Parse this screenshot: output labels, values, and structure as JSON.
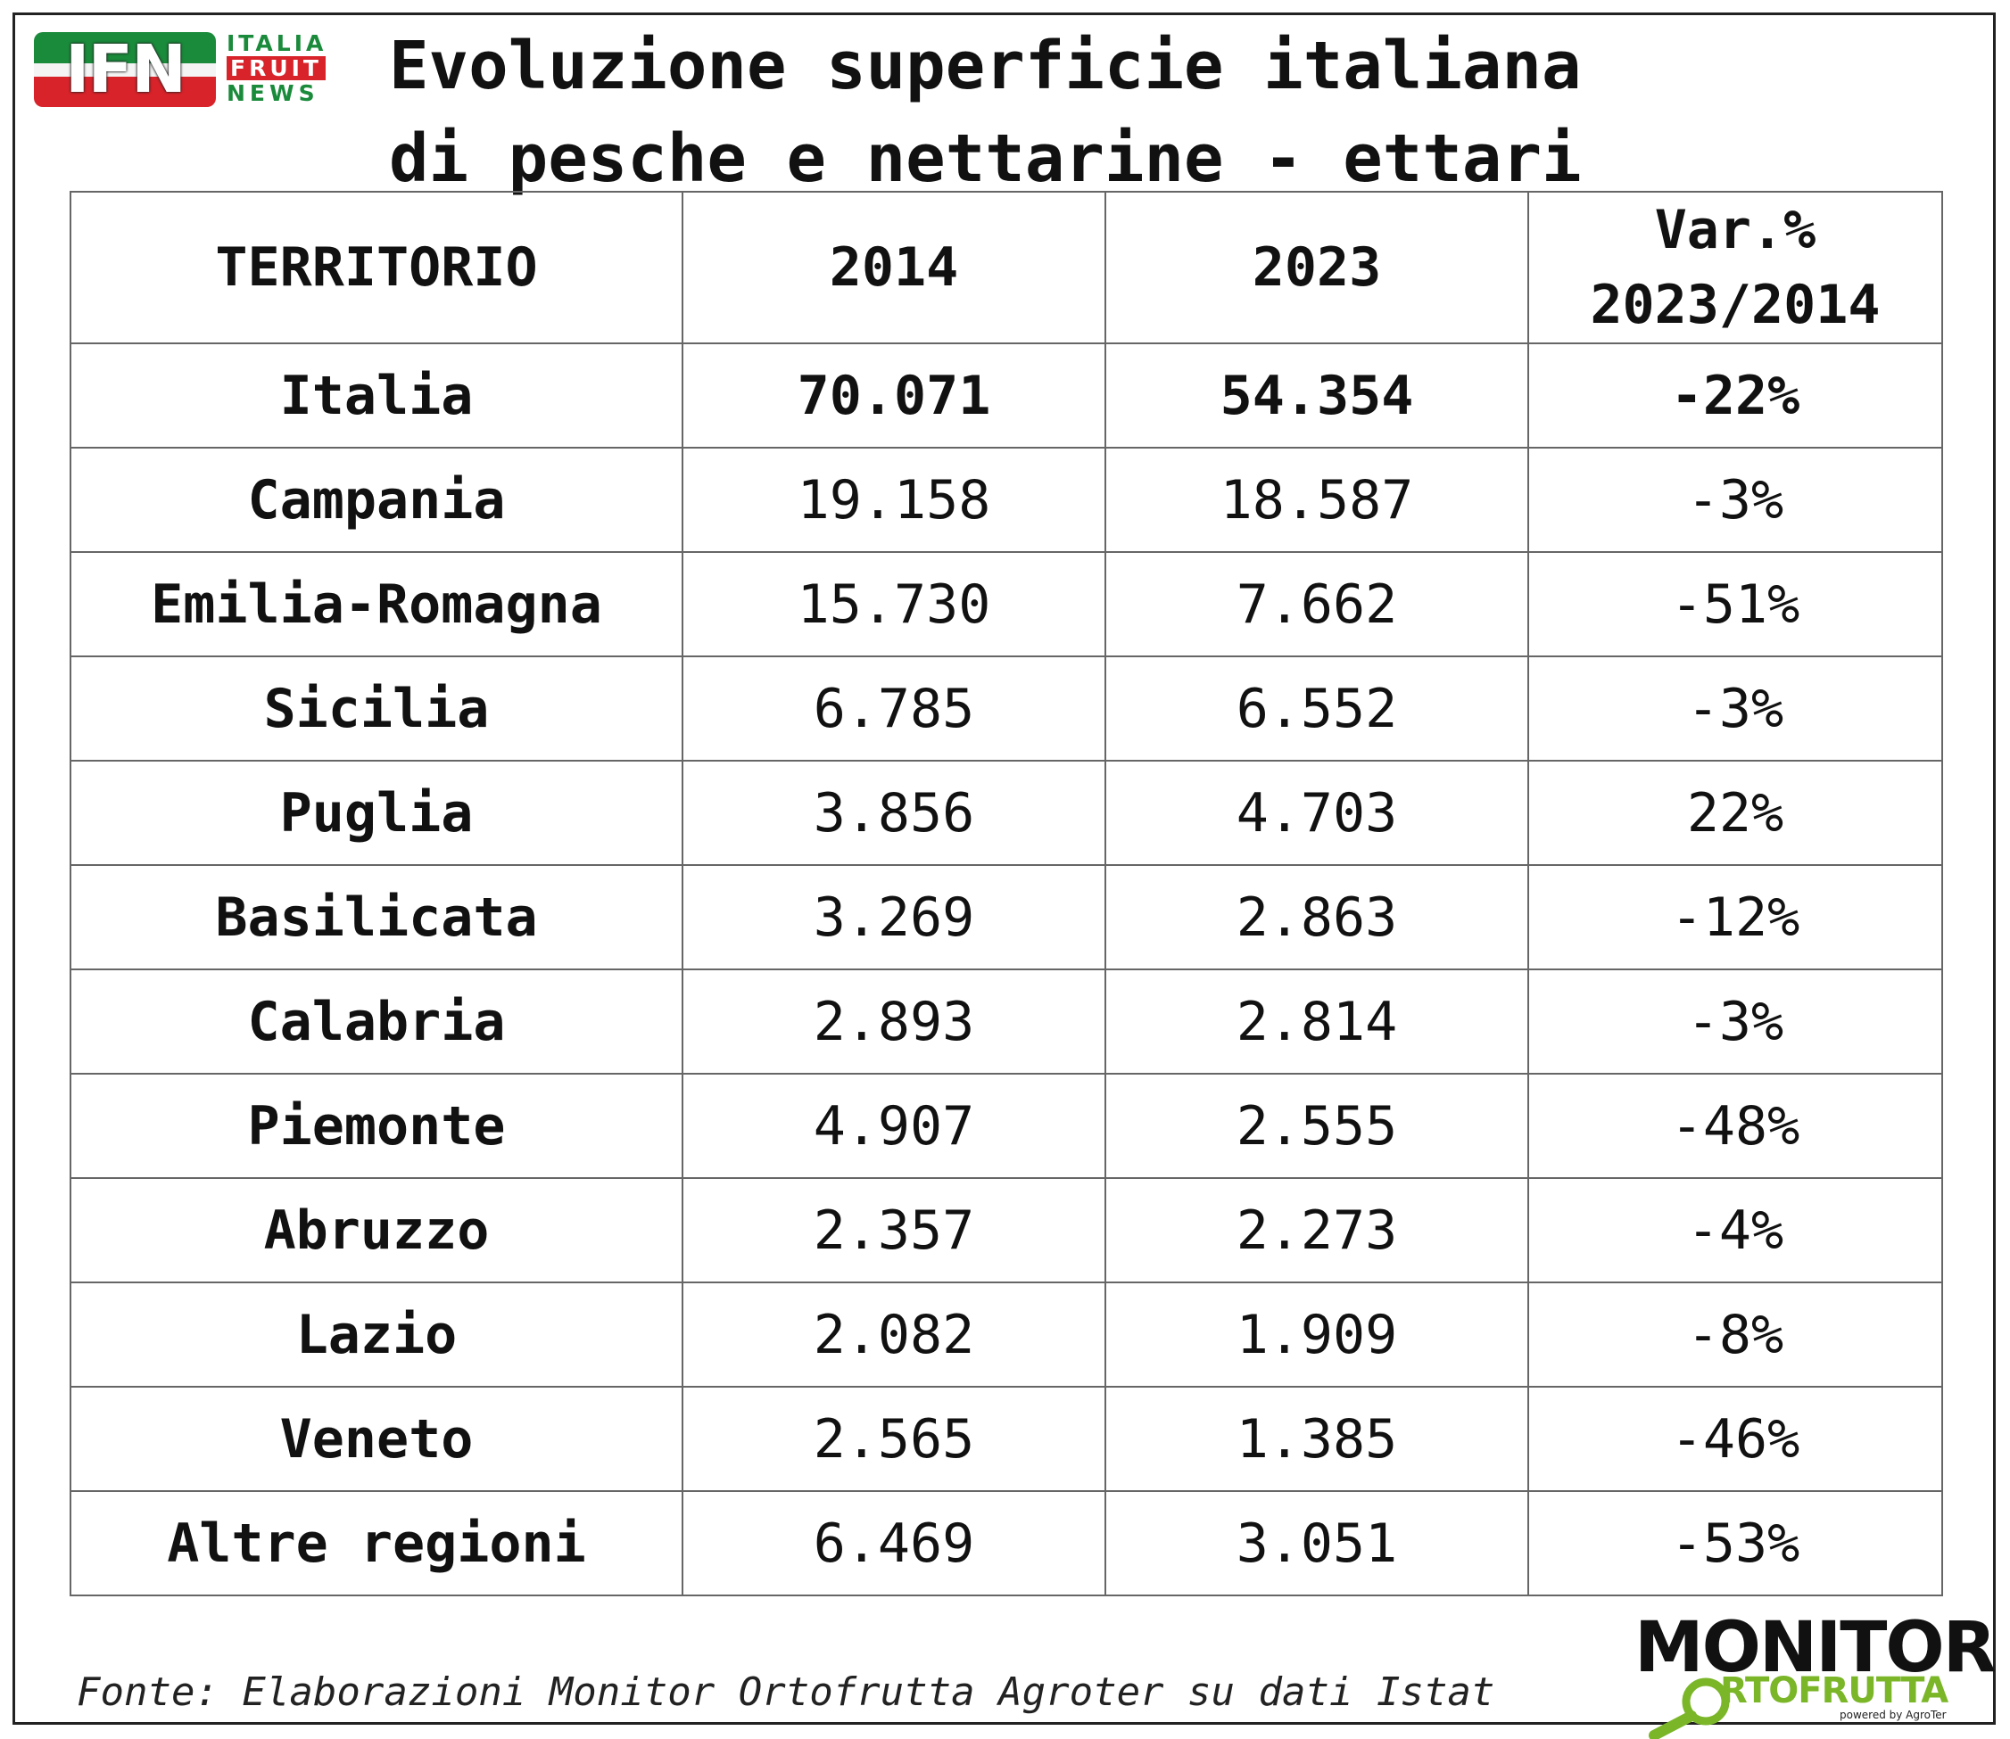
{
  "logo_ifn": {
    "badge_text": "IFN",
    "words": [
      "ITALIA",
      "FRUIT",
      "NEWS"
    ],
    "colors": {
      "green": "#1a8a3b",
      "red": "#d8232a"
    }
  },
  "title": {
    "line1": "Evoluzione superficie italiana",
    "line2": "di pesche e nettarine - ettari"
  },
  "table": {
    "headers": {
      "territorio": "TERRITORIO",
      "y2014": "2014",
      "y2023": "2023",
      "var_line1": "Var.%",
      "var_line2": "2023/2014"
    },
    "rows": [
      {
        "name": "Italia",
        "v2014": "70.071",
        "v2023": "54.354",
        "var": "-22%"
      },
      {
        "name": "Campania",
        "v2014": "19.158",
        "v2023": "18.587",
        "var": "-3%"
      },
      {
        "name": "Emilia-Romagna",
        "v2014": "15.730",
        "v2023": "7.662",
        "var": "-51%"
      },
      {
        "name": "Sicilia",
        "v2014": "6.785",
        "v2023": "6.552",
        "var": "-3%"
      },
      {
        "name": "Puglia",
        "v2014": "3.856",
        "v2023": "4.703",
        "var": "22%"
      },
      {
        "name": "Basilicata",
        "v2014": "3.269",
        "v2023": "2.863",
        "var": "-12%"
      },
      {
        "name": "Calabria",
        "v2014": "2.893",
        "v2023": "2.814",
        "var": "-3%"
      },
      {
        "name": "Piemonte",
        "v2014": "4.907",
        "v2023": "2.555",
        "var": "-48%"
      },
      {
        "name": "Abruzzo",
        "v2014": "2.357",
        "v2023": "2.273",
        "var": "-4%"
      },
      {
        "name": "Lazio",
        "v2014": "2.082",
        "v2023": "1.909",
        "var": "-8%"
      },
      {
        "name": "Veneto",
        "v2014": "2.565",
        "v2023": "1.385",
        "var": "-46%"
      },
      {
        "name": "Altre regioni",
        "v2014": "6.469",
        "v2023": "3.051",
        "var": "-53%"
      }
    ],
    "colors": {
      "negative": "#8b1010"
    }
  },
  "source": "Fonte: Elaborazioni Monitor Ortofrutta Agroter su dati Istat",
  "logo_monitor": {
    "line1": "MONITOR",
    "line2": "RTOFRUTTA",
    "line3": "powered by AgroTer",
    "colors": {
      "dark": "#111111",
      "green": "#7ab628"
    }
  }
}
